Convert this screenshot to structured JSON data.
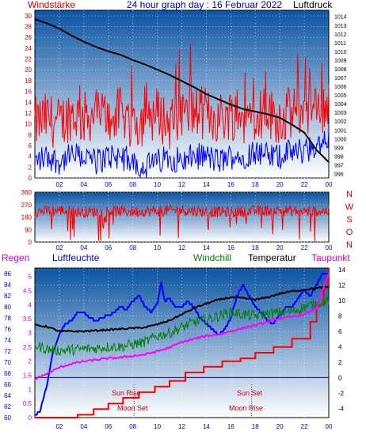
{
  "colors": {
    "wind": "#ff0000",
    "gust": "#0000ff",
    "pressure": "#000000",
    "direction": "#ff0000",
    "direction_labels": "#cc0000",
    "rain": "#ff0000",
    "humidity": "#0000ff",
    "windchill": "#008000",
    "temperature": "#000000",
    "dewpoint": "#ff00ff",
    "title": "#0000cc",
    "axis_blue": "#0000cc",
    "axis_red": "#cc0000",
    "axis_magenta": "#cc00cc",
    "bg_top": "#0b54a3",
    "bg_bottom": "#ffffff"
  },
  "chart_data": [
    {
      "type": "line",
      "title": "24 hour graph day : 16 Februar 2022",
      "left_label": "Windstärke",
      "right_label": "Luftdruck",
      "x_ticks": [
        "02",
        "04",
        "06",
        "08",
        "10",
        "12",
        "14",
        "16",
        "18",
        "20",
        "22",
        "00"
      ],
      "y_left_ticks": [
        0,
        2,
        4,
        6,
        8,
        10,
        12,
        14,
        16,
        18,
        20,
        22,
        24,
        26,
        28,
        30
      ],
      "y_left_range": [
        0,
        31
      ],
      "y_right_ticks": [
        996,
        997,
        998,
        999,
        1000,
        1001,
        1002,
        1003,
        1004,
        1005,
        1006,
        1007,
        1008,
        1009,
        1010,
        1011,
        1012,
        1013,
        1014
      ],
      "y_right_range": [
        995.5,
        1014.7
      ],
      "series": [
        {
          "role": "pressure",
          "axis": "right",
          "x": [
            0,
            1,
            2,
            3,
            4,
            5,
            6,
            7,
            8,
            9,
            10,
            11,
            12,
            13,
            14,
            15,
            16,
            17,
            18,
            19,
            20,
            21,
            22,
            23,
            24
          ],
          "values": [
            1013.7,
            1013.2,
            1012.6,
            1011.8,
            1011.1,
            1010.5,
            1010.0,
            1009.6,
            1009.0,
            1008.5,
            1007.9,
            1007.3,
            1006.6,
            1005.9,
            1005.1,
            1004.5,
            1003.9,
            1003.4,
            1003.1,
            1002.8,
            1002.4,
            1001.6,
            1000.7,
            998.7,
            997.3
          ]
        },
        {
          "role": "wind",
          "axis": "left",
          "x": [
            0,
            1,
            2,
            3,
            4,
            5,
            6,
            7,
            8,
            9,
            10,
            11,
            12,
            13,
            14,
            15,
            16,
            17,
            18,
            19,
            20,
            21,
            22,
            23,
            24
          ],
          "values": [
            10,
            11,
            10,
            12,
            11,
            12,
            11,
            12,
            10,
            11,
            12,
            10,
            11,
            12,
            12,
            11,
            12,
            11,
            12,
            12,
            11,
            12,
            13,
            12,
            14
          ]
        },
        {
          "role": "gust",
          "axis": "left",
          "x": [
            0,
            1,
            2,
            3,
            4,
            5,
            6,
            7,
            8,
            9,
            10,
            11,
            12,
            13,
            14,
            15,
            16,
            17,
            18,
            19,
            20,
            21,
            22,
            23,
            24
          ],
          "values": [
            3,
            4,
            3,
            4,
            4,
            3,
            4,
            4,
            3,
            2,
            3,
            4,
            3,
            4,
            4,
            3,
            4,
            4,
            5,
            4,
            4,
            5,
            5,
            6,
            7
          ]
        }
      ]
    },
    {
      "type": "line",
      "title": "",
      "x_ticks": [
        "02",
        "04",
        "06",
        "08",
        "10",
        "12",
        "14",
        "16",
        "18",
        "20",
        "22",
        "00"
      ],
      "y_ticks": [
        0,
        90,
        180,
        270,
        360
      ],
      "y_range": [
        0,
        360
      ],
      "direction_labels": [
        "N",
        "W",
        "S",
        "O",
        "N"
      ],
      "series": [
        {
          "role": "direction",
          "x": [
            0,
            2,
            4,
            6,
            8,
            10,
            12,
            14,
            16,
            18,
            20,
            22,
            24
          ],
          "values": [
            220,
            230,
            215,
            225,
            220,
            225,
            230,
            220,
            215,
            225,
            230,
            220,
            225
          ]
        }
      ]
    },
    {
      "type": "line",
      "title": "",
      "legend": [
        "Regen",
        "Luftfeuchte",
        "Windchill",
        "Temperatur",
        "Taupunkt"
      ],
      "x_ticks": [
        "02",
        "04",
        "06",
        "08",
        "10",
        "12",
        "14",
        "16",
        "18",
        "20",
        "22",
        "00"
      ],
      "y_left1_ticks": [
        60,
        62,
        64,
        66,
        68,
        70,
        72,
        74,
        76,
        78,
        80,
        82,
        84,
        86
      ],
      "y_left1_range": [
        60,
        87
      ],
      "y_left2_ticks": [
        0,
        0.5,
        1,
        1.5,
        2,
        2.5,
        3,
        3.5,
        4,
        4.5,
        5
      ],
      "y_left2_range": [
        0,
        5.3
      ],
      "y_right_ticks": [
        -4,
        -2,
        0,
        2,
        4,
        6,
        8,
        10,
        12,
        14
      ],
      "y_right_range": [
        -5.2,
        14.2
      ],
      "annotations": [
        "Sun Rise",
        "Moon Set",
        "Sun Set",
        "Moon Rise"
      ],
      "series": [
        {
          "role": "humidity",
          "axis": "left1",
          "x": [
            0,
            0.4,
            1,
            1.5,
            2,
            2.5,
            3,
            3.5,
            4,
            4.5,
            5,
            5.5,
            6,
            6.5,
            7,
            7.5,
            8,
            8.5,
            9,
            9.5,
            10,
            10.3,
            10.6,
            11,
            11.5,
            12,
            12.5,
            13,
            13.5,
            14,
            14.5,
            15,
            15.5,
            16,
            16.5,
            17,
            17.5,
            18,
            18.5,
            19,
            19.5,
            20,
            20.5,
            21,
            21.5,
            22,
            22.5,
            23,
            23.5,
            24
          ],
          "values": [
            60.5,
            61,
            66,
            72,
            75,
            77,
            77.5,
            79,
            79,
            78,
            77.5,
            78,
            78.5,
            79,
            80,
            79.5,
            81,
            82,
            80,
            79,
            80.5,
            84.5,
            81,
            81.5,
            80,
            80,
            81,
            80,
            78,
            77,
            76,
            75,
            76,
            78,
            82,
            84,
            82,
            80,
            79,
            77.5,
            77,
            78.5,
            80,
            80,
            81.5,
            83,
            82,
            84,
            86,
            86
          ]
        },
        {
          "role": "windchill",
          "axis": "right",
          "x": [
            0,
            1,
            2,
            3,
            4,
            5,
            6,
            7,
            8,
            9,
            10,
            11,
            12,
            13,
            14,
            15,
            16,
            17,
            18,
            19,
            20,
            21,
            22,
            23,
            24
          ],
          "values": [
            4.2,
            3.7,
            3.5,
            3.6,
            3.7,
            3.8,
            4.0,
            4.0,
            4.3,
            4.6,
            5.4,
            5.8,
            6.5,
            7.2,
            7.5,
            8.0,
            8.5,
            8.2,
            8.0,
            8.3,
            8.4,
            8.6,
            9.1,
            9.6,
            10.0
          ]
        },
        {
          "role": "temperature",
          "axis": "right",
          "x": [
            0,
            1,
            2,
            3,
            4,
            5,
            6,
            7,
            8,
            9,
            10,
            11,
            12,
            13,
            14,
            15,
            16,
            17,
            18,
            19,
            20,
            21,
            22,
            23,
            24
          ],
          "values": [
            6.8,
            6.6,
            6.0,
            6.0,
            6.0,
            6.1,
            6.2,
            6.3,
            6.4,
            6.5,
            6.9,
            7.4,
            8.2,
            9.0,
            9.6,
            10.1,
            10.4,
            10.3,
            10.1,
            10.4,
            10.9,
            11.2,
            11.4,
            11.6,
            11.8
          ]
        },
        {
          "role": "dewpoint",
          "axis": "right",
          "x": [
            0,
            1,
            2,
            3,
            4,
            5,
            6,
            7,
            8,
            9,
            10,
            11,
            12,
            13,
            14,
            15,
            16,
            17,
            18,
            19,
            20,
            21,
            22,
            23,
            24
          ],
          "values": [
            -0.2,
            0.5,
            1.3,
            1.8,
            2.1,
            2.3,
            2.5,
            2.6,
            2.8,
            3.0,
            3.4,
            3.9,
            4.6,
            5.0,
            5.4,
            5.6,
            6.0,
            6.4,
            6.8,
            7.2,
            7.7,
            7.9,
            8.2,
            9.0,
            13.5
          ]
        },
        {
          "role": "rain",
          "axis": "left2",
          "x": [
            0,
            3.5,
            4.8,
            6.0,
            7.2,
            8.5,
            9.8,
            11.0,
            12.3,
            13.8,
            15.3,
            16.8,
            18.0,
            19.5,
            21.0,
            22.5,
            23.0,
            23.6,
            24
          ],
          "values": [
            0,
            0.1,
            0.3,
            0.5,
            0.7,
            0.9,
            1.1,
            1.3,
            1.6,
            1.8,
            2.0,
            2.1,
            2.3,
            2.5,
            2.8,
            3.4,
            4.0,
            4.6,
            5.3
          ]
        }
      ]
    }
  ]
}
